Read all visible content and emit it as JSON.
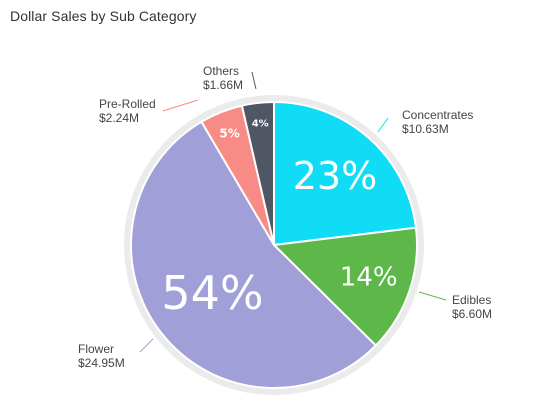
{
  "title": "Dollar Sales by Sub Category",
  "chart_data": {
    "type": "pie",
    "title": "Dollar Sales by Sub Category",
    "start_angle_deg": 0,
    "direction": "clockwise",
    "slices": [
      {
        "name": "Concentrates",
        "value_label": "$10.63M",
        "value": 10.63,
        "percent": 23,
        "percent_label": "23%",
        "color": "#10DDF5"
      },
      {
        "name": "Edibles",
        "value_label": "$6.60M",
        "value": 6.6,
        "percent": 14,
        "percent_label": "14%",
        "color": "#5EB749"
      },
      {
        "name": "Flower",
        "value_label": "$24.95M",
        "value": 24.95,
        "percent": 54,
        "percent_label": "54%",
        "color": "#A09FD8"
      },
      {
        "name": "Pre-Rolled",
        "value_label": "$2.24M",
        "value": 2.24,
        "percent": 5,
        "percent_label": "5%",
        "color": "#F98B86"
      },
      {
        "name": "Others",
        "value_label": "$1.66M",
        "value": 1.66,
        "percent": 4,
        "percent_label": "4%",
        "color": "#505664"
      }
    ],
    "ring_color": "#EBEBEB",
    "leader_colors": {
      "Concentrates": "#10DDF5",
      "Edibles": "#5EB749",
      "Flower": "#A09FD8",
      "Pre-Rolled": "#F98B86",
      "Others": "#505664"
    }
  }
}
